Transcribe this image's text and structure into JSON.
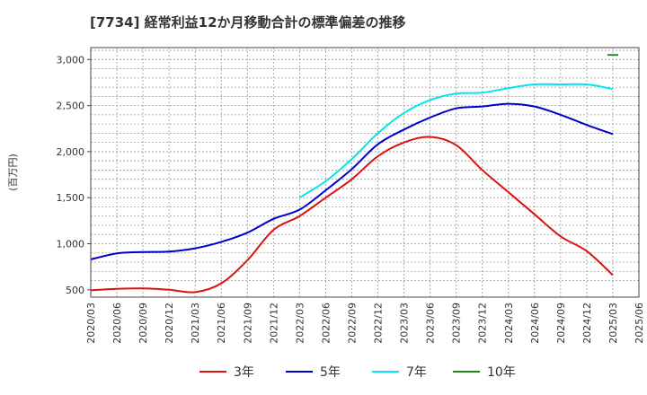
{
  "chart_data": {
    "type": "line",
    "title": "[7734]  経常利益12か月移動合計の標準偏差の推移",
    "ylabel": "(百万円)",
    "xlabel": "",
    "grid": true,
    "legend_position": "bottom",
    "x": [
      "2020/03",
      "2020/06",
      "2020/09",
      "2020/12",
      "2021/03",
      "2021/06",
      "2021/09",
      "2021/12",
      "2022/03",
      "2022/06",
      "2022/09",
      "2022/12",
      "2023/03",
      "2023/06",
      "2023/09",
      "2023/12",
      "2024/03",
      "2024/06",
      "2024/09",
      "2024/12",
      "2025/03",
      "2025/06"
    ],
    "ylim": [
      420,
      3130
    ],
    "yticks": [
      500,
      1000,
      1500,
      2000,
      2500,
      3000
    ],
    "ytick_labels": [
      "500",
      "1,000",
      "1,500",
      "2,000",
      "2,500",
      "3,000"
    ],
    "series": [
      {
        "name": "3年",
        "color": "#dd1111",
        "values": [
          495,
          510,
          515,
          500,
          475,
          570,
          820,
          1150,
          1300,
          1500,
          1700,
          1950,
          2100,
          2160,
          2070,
          1800,
          1560,
          1320,
          1080,
          920,
          660,
          null
        ]
      },
      {
        "name": "5年",
        "color": "#0000cc",
        "values": [
          830,
          895,
          910,
          915,
          950,
          1020,
          1120,
          1270,
          1370,
          1580,
          1810,
          2080,
          2240,
          2370,
          2470,
          2490,
          2520,
          2490,
          2400,
          2290,
          2190,
          null
        ]
      },
      {
        "name": "7年",
        "color": "#00e5ee",
        "values": [
          null,
          null,
          null,
          null,
          null,
          null,
          null,
          null,
          1500,
          1680,
          1920,
          2200,
          2420,
          2560,
          2630,
          2640,
          2690,
          2730,
          2730,
          2730,
          2680,
          null
        ]
      },
      {
        "name": "10年",
        "color": "#228822",
        "values": [
          null,
          null,
          null,
          null,
          null,
          null,
          null,
          null,
          null,
          null,
          null,
          null,
          null,
          null,
          null,
          null,
          null,
          null,
          null,
          null,
          3050,
          null
        ]
      }
    ]
  }
}
